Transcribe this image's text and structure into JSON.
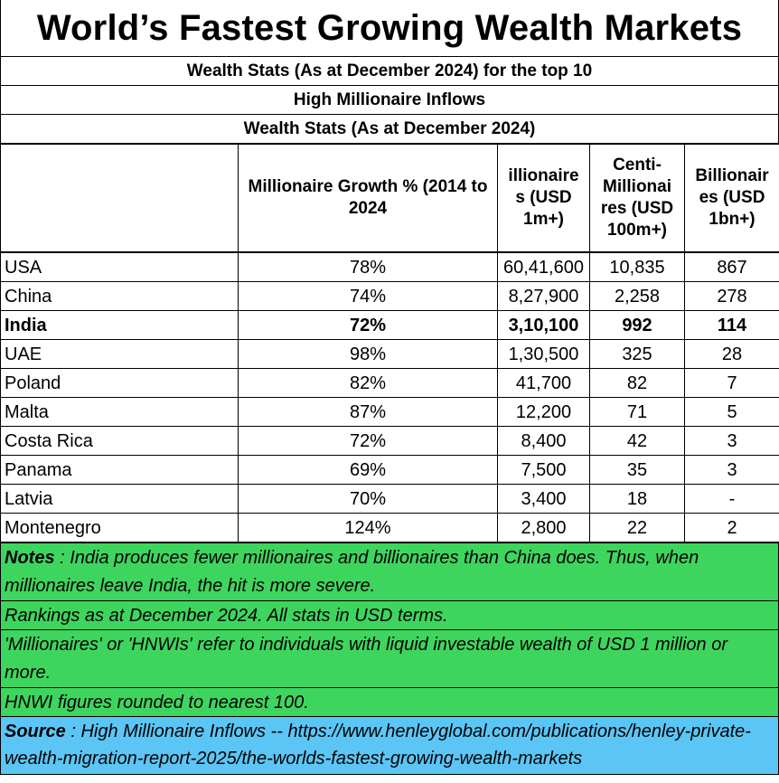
{
  "title": "World’s Fastest Growing Wealth Markets",
  "subtitle_1": "Wealth Stats (As at December 2024) for the top 10",
  "subtitle_2": "High Millionaire Inflows",
  "subtitle_3": "Wealth Stats (As at December 2024)",
  "columns": [
    "",
    "Millionaire Growth % (2014 to 2024",
    "illionaire s (USD 1m+)",
    "Centi-Millionai res (USD 100m+)",
    "Billionair es (USD 1bn+)"
  ],
  "rows": [
    {
      "country": "USA",
      "growth": "78%",
      "millionaires": "60,41,600",
      "centi": "10,835",
      "billionaires": "867",
      "bold": false
    },
    {
      "country": "China",
      "growth": "74%",
      "millionaires": "8,27,900",
      "centi": "2,258",
      "billionaires": "278",
      "bold": false
    },
    {
      "country": "India",
      "growth": "72%",
      "millionaires": "3,10,100",
      "centi": "992",
      "billionaires": "114",
      "bold": true
    },
    {
      "country": "UAE",
      "growth": "98%",
      "millionaires": "1,30,500",
      "centi": "325",
      "billionaires": "28",
      "bold": false
    },
    {
      "country": "Poland",
      "growth": "82%",
      "millionaires": "41,700",
      "centi": "82",
      "billionaires": "7",
      "bold": false
    },
    {
      "country": "Malta",
      "growth": "87%",
      "millionaires": "12,200",
      "centi": "71",
      "billionaires": "5",
      "bold": false
    },
    {
      "country": "Costa Rica",
      "growth": "72%",
      "millionaires": "8,400",
      "centi": "42",
      "billionaires": "3",
      "bold": false
    },
    {
      "country": "Panama",
      "growth": "69%",
      "millionaires": "7,500",
      "centi": "35",
      "billionaires": "3",
      "bold": false
    },
    {
      "country": "Latvia",
      "growth": "70%",
      "millionaires": "3,400",
      "centi": "18",
      "billionaires": "-",
      "bold": false
    },
    {
      "country": "Montenegro",
      "growth": "124%",
      "millionaires": "2,800",
      "centi": "22",
      "billionaires": "2",
      "bold": false
    }
  ],
  "notes": {
    "label": "Notes",
    "text": " : India produces fewer millionaires and billionaires than China does.  Thus, when millionaires leave India, the hit is more severe.",
    "rankings": "Rankings as at December 2024. All stats in USD terms.",
    "definition": "'Millionaires' or 'HNWIs' refer to individuals with liquid investable wealth of USD 1 million or more.",
    "rounding": "HNWI figures rounded to nearest 100."
  },
  "source": {
    "label": "Source",
    "text": " : High Millionaire Inflows -- https://www.henleyglobal.com/publications/henley-private-wealth-migration-report-2025/the-worlds-fastest-growing-wealth-markets"
  },
  "colors": {
    "notes_bg": "#3ed55e",
    "source_bg": "#5bc6f5"
  }
}
